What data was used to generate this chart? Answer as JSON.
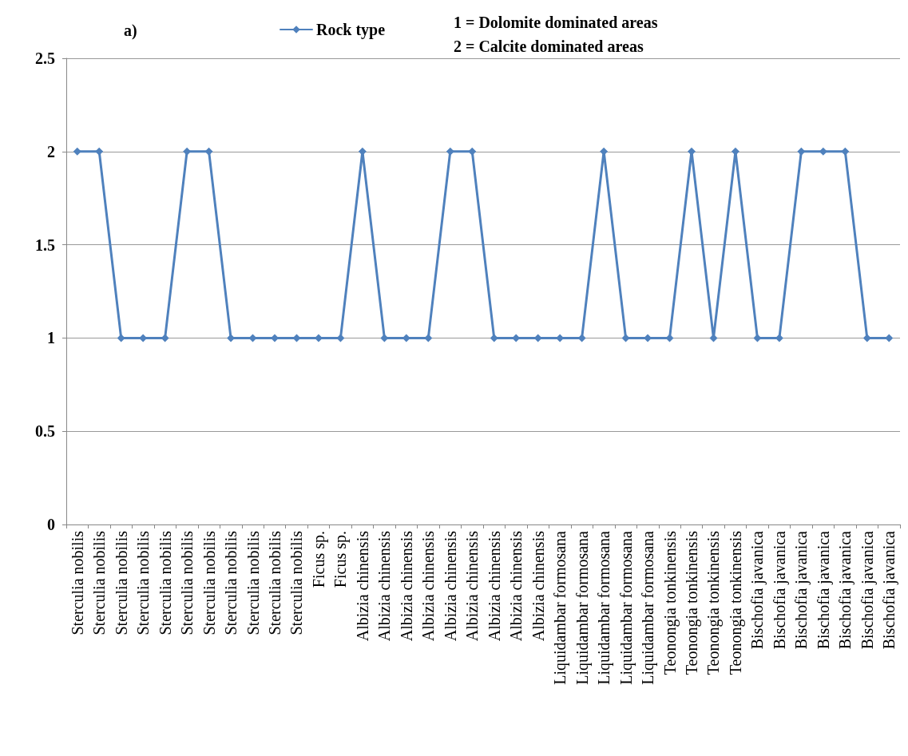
{
  "chart_data": {
    "type": "line",
    "categories": [
      "Sterculia nobilis",
      "Sterculia nobilis",
      "Sterculia nobilis",
      "Sterculia nobilis",
      "Sterculia nobilis",
      "Sterculia nobilis",
      "Sterculia nobilis",
      "Sterculia nobilis",
      "Sterculia nobilis",
      "Sterculia nobilis",
      "Sterculia nobilis",
      "Ficus sp.",
      "Ficus sp.",
      "Albizia chinensis",
      "Albizia chinensis",
      "Albizia chinensis",
      "Albizia chinensis",
      "Albizia chinensis",
      "Albizia chinensis",
      "Albizia chinensis",
      "Albizia chinensis",
      "Albizia chinensis",
      "Liquidambar formosana",
      "Liquidambar formosana",
      "Liquidambar formosana",
      "Liquidambar formosana",
      "Liquidambar formosana",
      "Teonongia tonkinensis",
      "Teonongia tonkinensis",
      "Teonongia tonkinensis",
      "Teonongia tonkinensis",
      "Bischofia javanica",
      "Bischofia javanica",
      "Bischofia javanica",
      "Bischofia javanica",
      "Bischofia javanica",
      "Bischofia javanica",
      "Bischofia javanica"
    ],
    "series": [
      {
        "name": "Rock type",
        "color": "#4f81bd",
        "values": [
          2,
          2,
          1,
          1,
          1,
          2,
          2,
          1,
          1,
          1,
          1,
          1,
          1,
          2,
          1,
          1,
          1,
          2,
          2,
          1,
          1,
          1,
          1,
          1,
          2,
          1,
          1,
          1,
          2,
          1,
          2,
          1,
          1,
          2,
          2,
          2,
          1,
          1
        ]
      }
    ],
    "ylim": [
      0,
      2.5
    ],
    "yticks": [
      0,
      0.5,
      1,
      1.5,
      2,
      2.5
    ],
    "grid": "y",
    "legend": "top",
    "marker": "diamond",
    "line_style": "solid",
    "annotations": [
      "a)",
      "1 = Dolomite dominated areas",
      "2 = Calcite dominated areas"
    ]
  }
}
